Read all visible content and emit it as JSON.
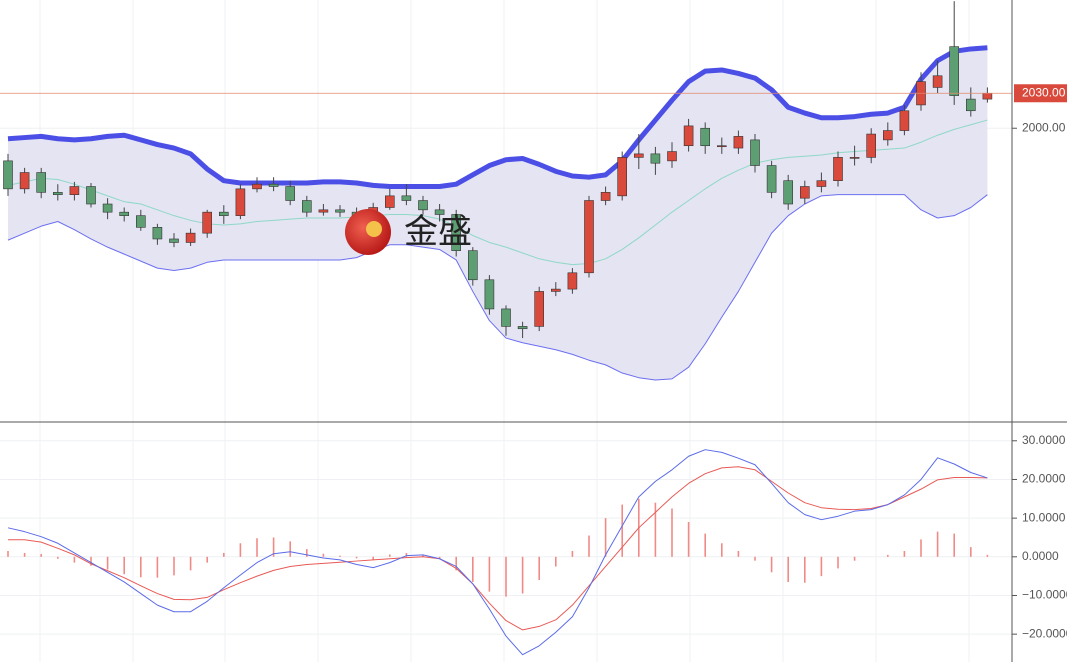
{
  "watermark": "金盛",
  "chart_data": [
    {
      "type": "candlestick",
      "ylim": [
        1748,
        2110
      ],
      "yticks": [
        {
          "value": 2000,
          "label": "2000.00"
        }
      ],
      "current_price": {
        "value": 2030,
        "label": "2030.00"
      },
      "up_color": "#d9493c",
      "down_color": "#5d9f72",
      "open": [
        1972,
        1948,
        1962,
        1945,
        1943,
        1950,
        1935,
        1928,
        1925,
        1915,
        1905,
        1902,
        1910,
        1928,
        1925,
        1948,
        1952,
        1950,
        1938,
        1928,
        1930,
        1928,
        1925,
        1932,
        1942,
        1938,
        1930,
        1926,
        1895,
        1870,
        1845,
        1830,
        1830,
        1860,
        1862,
        1876,
        1938,
        1942,
        1975,
        1978,
        1972,
        1985,
        2000,
        1985,
        1983,
        1990,
        1968,
        1955,
        1940,
        1950,
        1955,
        1975,
        1975,
        1990,
        1998,
        2020,
        2035,
        2070,
        2025,
        2025
      ],
      "high": [
        1978,
        1966,
        1966,
        1952,
        1954,
        1953,
        1940,
        1932,
        1930,
        1918,
        1910,
        1914,
        1930,
        1934,
        1952,
        1958,
        1958,
        1955,
        1942,
        1935,
        1934,
        1932,
        1936,
        1948,
        1952,
        1942,
        1935,
        1930,
        1898,
        1874,
        1848,
        1834,
        1864,
        1868,
        1880,
        1942,
        1950,
        1980,
        1995,
        1984,
        1988,
        2008,
        2005,
        1992,
        1998,
        1995,
        1972,
        1960,
        1955,
        1962,
        1980,
        1985,
        2000,
        2005,
        2020,
        2048,
        2058,
        2109,
        2035,
        2035
      ],
      "low": [
        1942,
        1944,
        1940,
        1938,
        1938,
        1932,
        1922,
        1920,
        1912,
        1900,
        1898,
        1899,
        1906,
        1918,
        1922,
        1945,
        1946,
        1934,
        1924,
        1925,
        1924,
        1921,
        1922,
        1930,
        1934,
        1926,
        1920,
        1890,
        1865,
        1840,
        1822,
        1820,
        1826,
        1856,
        1858,
        1872,
        1934,
        1938,
        1965,
        1960,
        1966,
        1980,
        1978,
        1978,
        1978,
        1962,
        1940,
        1930,
        1935,
        1945,
        1950,
        1968,
        1970,
        1985,
        1994,
        2015,
        2030,
        2020,
        2010,
        2022
      ],
      "close": [
        1948,
        1962,
        1945,
        1943,
        1950,
        1935,
        1928,
        1925,
        1915,
        1905,
        1902,
        1910,
        1928,
        1925,
        1948,
        1952,
        1950,
        1938,
        1928,
        1930,
        1928,
        1925,
        1932,
        1942,
        1938,
        1930,
        1926,
        1895,
        1870,
        1845,
        1830,
        1828,
        1860,
        1862,
        1876,
        1938,
        1945,
        1975,
        1978,
        1970,
        1980,
        2002,
        1985,
        1985,
        1993,
        1968,
        1945,
        1935,
        1950,
        1955,
        1975,
        1975,
        1995,
        1998,
        2015,
        2040,
        2045,
        2028,
        2015,
        2030
      ],
      "upper_band": [
        1991,
        1992,
        1993,
        1991,
        1990,
        1991,
        1993,
        1994,
        1990,
        1986,
        1983,
        1978,
        1965,
        1955,
        1953,
        1953,
        1953,
        1953,
        1953,
        1954,
        1954,
        1953,
        1951,
        1950,
        1950,
        1950,
        1950,
        1952,
        1960,
        1968,
        1973,
        1974,
        1969,
        1963,
        1959,
        1958,
        1960,
        1972,
        1990,
        2007,
        2024,
        2040,
        2049,
        2050,
        2047,
        2043,
        2033,
        2018,
        2013,
        2009,
        2009,
        2010,
        2012,
        2013,
        2018,
        2042,
        2058,
        2066,
        2068,
        2069
      ],
      "middle_band": [
        1951,
        1954,
        1957,
        1956,
        1952,
        1947,
        1942,
        1937,
        1935,
        1930,
        1925,
        1921,
        1918,
        1917,
        1918,
        1920,
        1921,
        1922,
        1923,
        1923,
        1923,
        1924,
        1925,
        1926,
        1926,
        1925,
        1922,
        1916,
        1908,
        1902,
        1898,
        1893,
        1888,
        1885,
        1883,
        1884,
        1888,
        1896,
        1906,
        1917,
        1928,
        1938,
        1948,
        1957,
        1964,
        1970,
        1973,
        1975,
        1976,
        1977,
        1979,
        1980,
        1981,
        1982,
        1983,
        1988,
        1994,
        1999,
        2003,
        2007
      ],
      "lower_band": [
        1904,
        1910,
        1916,
        1920,
        1913,
        1905,
        1898,
        1892,
        1886,
        1880,
        1878,
        1880,
        1885,
        1887,
        1887,
        1887,
        1887,
        1887,
        1887,
        1887,
        1887,
        1889,
        1895,
        1900,
        1900,
        1898,
        1896,
        1887,
        1860,
        1835,
        1820,
        1816,
        1813,
        1810,
        1806,
        1801,
        1797,
        1790,
        1786,
        1784,
        1785,
        1795,
        1815,
        1838,
        1860,
        1885,
        1910,
        1925,
        1935,
        1942,
        1943,
        1943,
        1943,
        1943,
        1943,
        1930,
        1923,
        1925,
        1932,
        1943
      ],
      "upper_color": "#4b4fe6",
      "middle_color": "#8fd8c6",
      "lower_color": "#6c6ff0",
      "band_fill": "#e4e4f3"
    },
    {
      "type": "macd",
      "ylim": [
        -27.2,
        34.6
      ],
      "yticks": [
        {
          "value": 30,
          "label": "30.0000"
        },
        {
          "value": 20,
          "label": "20.0000"
        },
        {
          "value": 10,
          "label": "10.0000"
        },
        {
          "value": 0,
          "label": "0.0000"
        },
        {
          "value": -10,
          "label": "−10.0000"
        },
        {
          "value": -20,
          "label": "−20.0000"
        }
      ],
      "dif": [
        7.5,
        6.5,
        5.2,
        3.5,
        1.0,
        -1.5,
        -4.0,
        -6.5,
        -9.5,
        -12.5,
        -14.2,
        -14.2,
        -11.5,
        -8.0,
        -4.7,
        -1.5,
        0.8,
        1.3,
        0.5,
        -0.3,
        -0.8,
        -2.0,
        -2.8,
        -1.5,
        0.3,
        0.5,
        -0.5,
        -2.5,
        -7.0,
        -13.5,
        -20.5,
        -25.3,
        -23,
        -19.5,
        -15.5,
        -8.0,
        0.5,
        8.0,
        15.5,
        19.5,
        22.5,
        26.0,
        27.7,
        27.0,
        25.5,
        23.8,
        19.0,
        14.0,
        10.9,
        9.6,
        10.5,
        11.8,
        12.2,
        13.5,
        16,
        20,
        25.6,
        24.0,
        21.8,
        20.4
      ],
      "dea": [
        4.4,
        4.4,
        3.8,
        2.2,
        0.5,
        -1.8,
        -3.6,
        -5.4,
        -7.5,
        -9.5,
        -11.0,
        -11.1,
        -10.5,
        -8.5,
        -6.7,
        -5.0,
        -3.5,
        -2.5,
        -2.0,
        -1.7,
        -1.4,
        -1.1,
        -0.8,
        -0.5,
        -0.2,
        0.0,
        -0.5,
        -3.0,
        -7.0,
        -12.0,
        -16.5,
        -18.9,
        -18.0,
        -16.3,
        -12.5,
        -7.5,
        -2.5,
        2.5,
        7.5,
        11.5,
        15.5,
        19.0,
        21.5,
        23.0,
        23.3,
        22.5,
        19.5,
        16.5,
        14.0,
        12.7,
        12.3,
        12.2,
        12.5,
        13.5,
        15.5,
        17.5,
        19.9,
        20.5,
        20.5,
        20.4
      ],
      "histogram": [
        1.5,
        1.0,
        0.7,
        -0.5,
        -1.5,
        -2.3,
        -3.3,
        -4.5,
        -5.3,
        -5.4,
        -4.8,
        -3.5,
        -1.5,
        1.0,
        3.5,
        4.8,
        5.0,
        4.0,
        2.0,
        0.8,
        0.3,
        -0.4,
        -0.8,
        0.6,
        1.0,
        0.5,
        -0.5,
        -3.5,
        -6.5,
        -9.0,
        -10.3,
        -9.5,
        -6.0,
        -2.5,
        1.5,
        5.5,
        10.0,
        13.5,
        15.0,
        14.0,
        12.5,
        9.0,
        6.0,
        3.5,
        1.5,
        -1.0,
        -4.0,
        -6.5,
        -6.7,
        -5.0,
        -3.0,
        -1.0,
        0.0,
        0.5,
        1.5,
        4.5,
        6.5,
        6.0,
        2.5,
        0.5
      ],
      "dif_color": "#5b6be8",
      "dea_color": "#e85a55",
      "histogram_color": "#f08a86"
    }
  ]
}
